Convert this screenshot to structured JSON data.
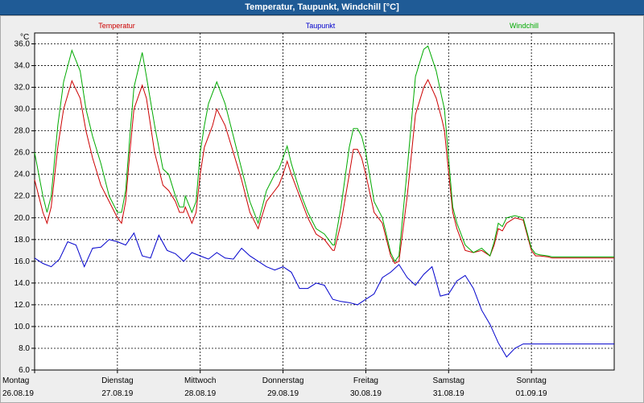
{
  "window": {
    "title": "Temperatur, Taupunkt, Windchill [°C]"
  },
  "chart_data": {
    "type": "line",
    "title": "Temperatur, Taupunkt, Windchill [°C]",
    "ylabel": "°C",
    "ylim": [
      6.0,
      37.0
    ],
    "y_ticks": [
      "6.0",
      "8.0",
      "10.0",
      "12.0",
      "14.0",
      "16.0",
      "18.0",
      "20.0",
      "22.0",
      "24.0",
      "26.0",
      "28.0",
      "30.0",
      "32.0",
      "34.0",
      "36.0"
    ],
    "grid": true,
    "x_unit": "days since Monday 26.08.19 00:00",
    "xlim": [
      0,
      7
    ],
    "day_labels": [
      {
        "day": "Montag",
        "date": "26.08.19"
      },
      {
        "day": "Dienstag",
        "date": "27.08.19"
      },
      {
        "day": "Mittwoch",
        "date": "28.08.19"
      },
      {
        "day": "Donnerstag",
        "date": "29.08.19"
      },
      {
        "day": "Freitag",
        "date": "30.08.19"
      },
      {
        "day": "Samstag",
        "date": "31.08.19"
      },
      {
        "day": "Sonntag",
        "date": "01.09.19"
      }
    ],
    "series": [
      {
        "name": "Temperatur",
        "color": "#cc0000",
        "x": [
          0.0,
          0.1,
          0.15,
          0.2,
          0.28,
          0.35,
          0.45,
          0.55,
          0.62,
          0.7,
          0.8,
          0.9,
          1.0,
          1.05,
          1.1,
          1.15,
          1.2,
          1.3,
          1.35,
          1.45,
          1.55,
          1.62,
          1.7,
          1.75,
          1.8,
          1.82,
          1.9,
          1.95,
          2.0,
          2.05,
          2.1,
          2.15,
          2.2,
          2.3,
          2.4,
          2.5,
          2.6,
          2.7,
          2.8,
          2.9,
          2.95,
          3.0,
          3.05,
          3.1,
          3.2,
          3.3,
          3.4,
          3.5,
          3.6,
          3.62,
          3.7,
          3.8,
          3.85,
          3.9,
          3.95,
          4.0,
          4.1,
          4.2,
          4.3,
          4.35,
          4.4,
          4.5,
          4.6,
          4.7,
          4.75,
          4.85,
          4.92,
          4.95,
          5.05,
          5.1,
          5.2,
          5.3,
          5.4,
          5.5,
          5.55,
          5.6,
          5.65,
          5.7,
          5.8,
          5.9,
          6.0,
          6.05,
          6.1,
          6.2,
          6.25,
          6.3,
          6.4,
          6.45,
          6.5,
          6.55,
          6.6,
          6.7,
          6.8,
          6.9,
          7.0
        ],
        "y": [
          23.5,
          20.5,
          19.5,
          21.0,
          26.5,
          30.0,
          32.6,
          31.0,
          28.0,
          25.5,
          23.0,
          21.5,
          20.0,
          19.5,
          21.5,
          26.0,
          30.0,
          32.2,
          31.0,
          26.0,
          23.0,
          22.5,
          21.5,
          20.5,
          20.5,
          21.0,
          19.5,
          20.5,
          24.0,
          26.5,
          27.5,
          28.5,
          30.0,
          28.5,
          26.0,
          23.5,
          20.5,
          19.0,
          21.5,
          22.5,
          23.0,
          24.0,
          25.2,
          24.0,
          22.0,
          20.0,
          18.5,
          18.0,
          17.0,
          17.0,
          19.5,
          24.0,
          26.3,
          26.3,
          25.5,
          24.0,
          20.5,
          19.5,
          16.5,
          15.8,
          16.0,
          22.0,
          29.5,
          32.0,
          32.7,
          31.0,
          29.0,
          28.0,
          20.5,
          19.0,
          17.0,
          16.8,
          17.0,
          16.5,
          17.5,
          19.0,
          18.8,
          19.5,
          20.0,
          19.8,
          17.0,
          16.5,
          16.5,
          16.4,
          16.3,
          16.3,
          16.3,
          16.3,
          16.3,
          16.3,
          16.3,
          16.3,
          16.3,
          16.3,
          16.3
        ]
      },
      {
        "name": "Taupunkt",
        "color": "#0000cc",
        "x": [
          0.0,
          0.1,
          0.2,
          0.3,
          0.4,
          0.5,
          0.6,
          0.7,
          0.8,
          0.9,
          1.0,
          1.1,
          1.2,
          1.3,
          1.4,
          1.5,
          1.6,
          1.7,
          1.8,
          1.9,
          2.0,
          2.1,
          2.2,
          2.3,
          2.4,
          2.5,
          2.6,
          2.7,
          2.8,
          2.9,
          3.0,
          3.1,
          3.2,
          3.3,
          3.4,
          3.5,
          3.6,
          3.7,
          3.8,
          3.9,
          4.0,
          4.1,
          4.2,
          4.3,
          4.4,
          4.5,
          4.6,
          4.7,
          4.8,
          4.9,
          5.0,
          5.1,
          5.2,
          5.3,
          5.4,
          5.5,
          5.6,
          5.7,
          5.8,
          5.9,
          6.0,
          6.1,
          6.2,
          6.3,
          6.4,
          6.5,
          6.6,
          6.7,
          6.8,
          6.9,
          7.0
        ],
        "y": [
          16.3,
          15.8,
          15.5,
          16.2,
          17.8,
          17.5,
          15.5,
          17.2,
          17.3,
          18.0,
          17.8,
          17.5,
          18.6,
          16.5,
          16.3,
          18.4,
          17.0,
          16.7,
          16.0,
          16.8,
          16.5,
          16.2,
          16.8,
          16.3,
          16.2,
          17.2,
          16.5,
          16.0,
          15.5,
          15.2,
          15.5,
          15.0,
          13.5,
          13.5,
          14.0,
          13.8,
          12.5,
          12.3,
          12.2,
          12.0,
          12.5,
          13.0,
          14.5,
          15.0,
          15.7,
          14.5,
          13.8,
          14.8,
          15.5,
          12.8,
          13.0,
          14.2,
          14.7,
          13.5,
          11.5,
          10.2,
          8.5,
          7.2,
          8.0,
          8.4,
          8.4,
          8.4,
          8.4,
          8.4,
          8.4,
          8.4,
          8.4,
          8.4,
          8.4,
          8.4,
          8.4
        ]
      },
      {
        "name": "Windchill",
        "color": "#00aa00",
        "x": [
          0.0,
          0.1,
          0.15,
          0.2,
          0.28,
          0.35,
          0.45,
          0.55,
          0.62,
          0.7,
          0.8,
          0.9,
          1.0,
          1.05,
          1.1,
          1.15,
          1.2,
          1.3,
          1.35,
          1.45,
          1.55,
          1.62,
          1.7,
          1.75,
          1.8,
          1.82,
          1.9,
          1.95,
          2.0,
          2.05,
          2.1,
          2.15,
          2.2,
          2.3,
          2.4,
          2.5,
          2.6,
          2.7,
          2.8,
          2.9,
          2.95,
          3.0,
          3.05,
          3.1,
          3.2,
          3.3,
          3.4,
          3.5,
          3.6,
          3.62,
          3.7,
          3.8,
          3.85,
          3.9,
          3.95,
          4.0,
          4.1,
          4.2,
          4.3,
          4.35,
          4.4,
          4.5,
          4.6,
          4.7,
          4.75,
          4.85,
          4.92,
          4.95,
          5.05,
          5.1,
          5.2,
          5.3,
          5.4,
          5.5,
          5.55,
          5.6,
          5.65,
          5.7,
          5.8,
          5.9,
          6.0,
          6.05,
          6.1,
          6.2,
          6.25,
          6.3,
          6.4,
          6.45,
          6.5,
          6.55,
          6.6,
          6.7,
          6.8,
          6.9,
          7.0
        ],
        "y": [
          26.0,
          22.0,
          20.5,
          22.0,
          28.5,
          32.5,
          35.4,
          33.5,
          30.0,
          27.5,
          25.0,
          22.0,
          20.5,
          20.5,
          22.5,
          27.5,
          32.0,
          35.2,
          33.0,
          28.5,
          24.5,
          24.0,
          22.0,
          21.0,
          21.0,
          22.0,
          20.5,
          21.5,
          26.0,
          28.5,
          30.5,
          31.5,
          32.5,
          30.5,
          27.5,
          24.5,
          21.5,
          19.5,
          22.5,
          24.0,
          24.5,
          25.5,
          26.6,
          25.0,
          22.5,
          20.5,
          19.0,
          18.5,
          17.5,
          17.5,
          21.0,
          26.5,
          28.2,
          28.2,
          27.5,
          26.0,
          21.5,
          20.0,
          16.8,
          16.0,
          16.5,
          24.5,
          33.0,
          35.5,
          35.8,
          33.5,
          31.0,
          30.0,
          21.0,
          19.5,
          17.5,
          16.8,
          17.2,
          16.5,
          17.8,
          19.5,
          19.2,
          20.0,
          20.2,
          20.0,
          17.2,
          16.7,
          16.6,
          16.5,
          16.4,
          16.4,
          16.4,
          16.4,
          16.4,
          16.4,
          16.4,
          16.4,
          16.4,
          16.4,
          16.4
        ]
      }
    ]
  }
}
